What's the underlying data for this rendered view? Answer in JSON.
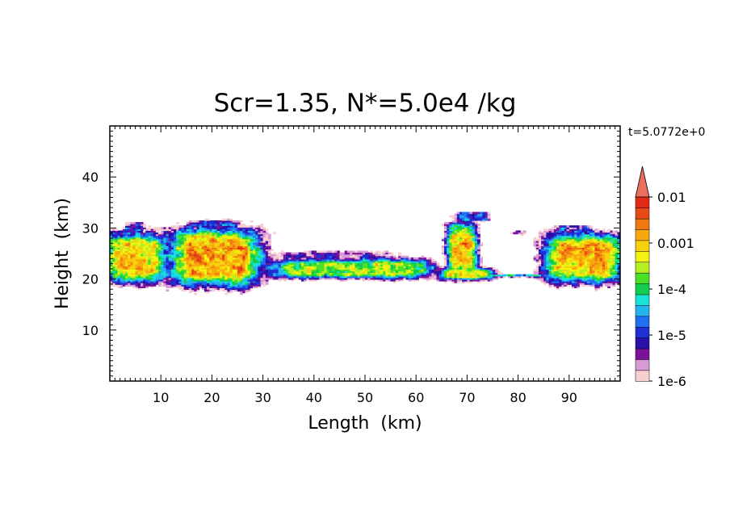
{
  "chart_data": {
    "type": "heatmap",
    "title": "Scr=1.35, N*=5.0e4 /kg",
    "time_label": "t=5.0772e+0",
    "xlabel": "Length  (km)",
    "ylabel": "Height  (km)",
    "xlim": [
      0,
      100
    ],
    "ylim": [
      0,
      50
    ],
    "xticks": [
      10,
      20,
      30,
      40,
      50,
      60,
      70,
      80,
      90
    ],
    "yticks": [
      10,
      20,
      30,
      40
    ],
    "colorbar": {
      "scale": "log",
      "min": 1e-06,
      "max": 0.01,
      "extend": "max",
      "tick_values": [
        0.01,
        0.001,
        0.0001,
        1e-05,
        1e-06
      ],
      "tick_labels": [
        "0.01",
        "0.001",
        "1e-4",
        "1e-5",
        "1e-6"
      ],
      "colors": [
        "#f7cfd3",
        "#d99bd6",
        "#7a129a",
        "#2a0fa8",
        "#1f2fd6",
        "#1f6ff0",
        "#25b5ee",
        "#18e3d8",
        "#12cc50",
        "#49e02a",
        "#b7ee22",
        "#f3f312",
        "#f7d10e",
        "#f7a80c",
        "#f07a10",
        "#e84a15",
        "#e22a18",
        "#ea6f5e"
      ]
    },
    "features": [
      {
        "name": "left cloud",
        "x_range": [
          0,
          12
        ],
        "z_range": [
          19,
          30
        ],
        "peak": "1e-3"
      },
      {
        "name": "main anvil",
        "x_range": [
          11,
          31
        ],
        "z_range": [
          18,
          31
        ],
        "peak": "2e-3"
      },
      {
        "name": "central band",
        "x_range": [
          29,
          65
        ],
        "z_range": [
          19.5,
          25
        ],
        "peak": "2e-4"
      },
      {
        "name": "updraft column",
        "x_range": [
          65,
          73
        ],
        "z_range": [
          20,
          32
        ],
        "peak": "1e-3"
      },
      {
        "name": "thin layer",
        "x_range": [
          73,
          85
        ],
        "z_range": [
          20.5,
          21
        ],
        "peak": "1e-5"
      },
      {
        "name": "right cloud",
        "x_range": [
          84,
          100
        ],
        "z_range": [
          19,
          30
        ],
        "peak": "1e-3"
      }
    ]
  }
}
